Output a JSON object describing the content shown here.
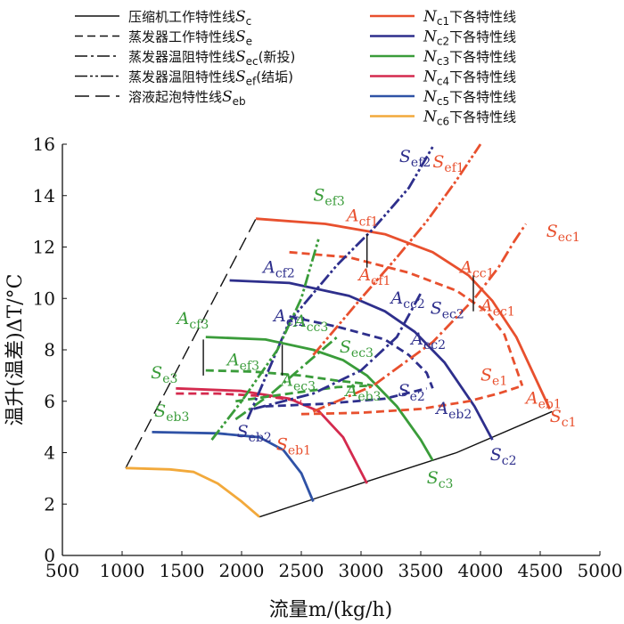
{
  "chart_data": {
    "type": "line",
    "xlabel": "流量m/(kg/h)",
    "ylabel": "温升(温差)ΔT/°C",
    "xlim": [
      500,
      5000
    ],
    "ylim": [
      0,
      16
    ],
    "x_ticks": [
      "500",
      "1000",
      "1500",
      "2000",
      "2500",
      "3000",
      "3500",
      "4000",
      "4500",
      "5000"
    ],
    "y_ticks": [
      "0",
      "2",
      "4",
      "6",
      "8",
      "10",
      "12",
      "14",
      "16"
    ],
    "grid": false,
    "legend_placement": "top",
    "colors": {
      "Nc1": "#e8502e",
      "Nc2": "#2e2f8c",
      "Nc3": "#3a9c3a",
      "Nc4": "#d42a4e",
      "Nc5": "#2f52a6",
      "Nc6": "#f2a93b",
      "black": "#111111"
    },
    "legend": [
      {
        "main": "压缩机工作特性线",
        "sym": "S",
        "sub": "c",
        "style": "solid",
        "color": "black"
      },
      {
        "main": "蒸发器工作特性线",
        "sym": "S",
        "sub": "e",
        "style": "dashed",
        "color": "black"
      },
      {
        "main": "蒸发器温阻特性线",
        "sym": "S",
        "sub": "ec",
        "extra": "(新投)",
        "style": "dashdot",
        "color": "black"
      },
      {
        "main": "蒸发器温阻特性线",
        "sym": "S",
        "sub": "ef",
        "extra": "(结垢)",
        "style": "dashdotdot",
        "color": "black"
      },
      {
        "main": "溶液起泡特性线",
        "sym": "S",
        "sub": "eb",
        "style": "longdash",
        "color": "black"
      },
      {
        "main": "下各特性线",
        "sym": "N",
        "sub": "c1",
        "style": "solid",
        "color": "Nc1"
      },
      {
        "main": "下各特性线",
        "sym": "N",
        "sub": "c2",
        "style": "solid",
        "color": "Nc2"
      },
      {
        "main": "下各特性线",
        "sym": "N",
        "sub": "c3",
        "style": "solid",
        "color": "Nc3"
      },
      {
        "main": "下各特性线",
        "sym": "N",
        "sub": "c4",
        "style": "solid",
        "color": "Nc4"
      },
      {
        "main": "下各特性线",
        "sym": "N",
        "sub": "c5",
        "style": "solid",
        "color": "Nc5"
      },
      {
        "main": "下各特性线",
        "sym": "N",
        "sub": "c6",
        "style": "solid",
        "color": "Nc6"
      }
    ],
    "series": [
      {
        "color": "black",
        "style": "solid",
        "x": [
          2150,
          3000,
          3800,
          4600
        ],
        "y": [
          1.5,
          2.8,
          4.0,
          5.6
        ]
      },
      {
        "color": "black",
        "style": "longdash",
        "x": [
          1030,
          2120
        ],
        "y": [
          3.4,
          13.1
        ]
      },
      {
        "color": "Nc1",
        "style": "solid",
        "x": [
          2120,
          2700,
          3200,
          3600,
          3900,
          4100,
          4300,
          4450,
          4580
        ],
        "y": [
          13.1,
          12.9,
          12.5,
          11.8,
          10.9,
          9.9,
          8.5,
          7.0,
          5.7
        ]
      },
      {
        "color": "Nc2",
        "style": "solid",
        "x": [
          1900,
          2400,
          2900,
          3200,
          3450,
          3700,
          3950,
          4100
        ],
        "y": [
          10.7,
          10.6,
          10.1,
          9.5,
          8.7,
          7.5,
          5.8,
          4.5
        ]
      },
      {
        "color": "Nc3",
        "style": "solid",
        "x": [
          1700,
          2200,
          2600,
          2850,
          3050,
          3300,
          3500,
          3600
        ],
        "y": [
          8.5,
          8.4,
          8.0,
          7.6,
          7.0,
          5.8,
          4.5,
          3.7
        ]
      },
      {
        "color": "Nc4",
        "style": "solid",
        "x": [
          1450,
          2000,
          2400,
          2650,
          2850,
          3050
        ],
        "y": [
          6.5,
          6.4,
          6.1,
          5.6,
          4.6,
          2.8
        ]
      },
      {
        "color": "Nc5",
        "style": "solid",
        "x": [
          1250,
          1800,
          2150,
          2350,
          2500,
          2600
        ],
        "y": [
          4.8,
          4.75,
          4.6,
          4.1,
          3.2,
          2.1
        ]
      },
      {
        "color": "Nc6",
        "style": "solid",
        "x": [
          1030,
          1400,
          1600,
          1800,
          2000,
          2150
        ],
        "y": [
          3.4,
          3.35,
          3.25,
          2.8,
          2.1,
          1.5
        ]
      },
      {
        "color": "Nc1",
        "style": "dashed",
        "x": [
          2400,
          2900,
          3400,
          3800,
          4050,
          4200,
          4350
        ],
        "y": [
          11.8,
          11.6,
          11.0,
          10.3,
          9.5,
          8.6,
          6.6
        ]
      },
      {
        "color": "Nc2",
        "style": "dashed",
        "x": [
          2400,
          2800,
          3200,
          3400,
          3550,
          3600
        ],
        "y": [
          9.3,
          8.9,
          8.4,
          7.8,
          7.1,
          6.5
        ]
      },
      {
        "color": "Nc3",
        "style": "dashed",
        "x": [
          1700,
          2100,
          2500,
          2800,
          3000,
          3100
        ],
        "y": [
          7.2,
          7.15,
          7.0,
          6.8,
          6.7,
          6.6
        ]
      },
      {
        "color": "Nc4",
        "style": "dashed",
        "x": [
          1450,
          1800,
          2200,
          2500
        ],
        "y": [
          6.3,
          6.3,
          6.2,
          6.0
        ]
      },
      {
        "color": "Nc1",
        "style": "dashed",
        "x": [
          2500,
          3000,
          3500,
          3900,
          4150,
          4350
        ],
        "y": [
          5.5,
          5.55,
          5.7,
          6.0,
          6.3,
          6.6
        ]
      },
      {
        "color": "Nc2",
        "style": "dashed",
        "x": [
          2200,
          2700,
          3200,
          3550
        ],
        "y": [
          5.8,
          5.9,
          6.1,
          6.5
        ]
      },
      {
        "color": "Nc3",
        "style": "dashed",
        "x": [
          1950,
          2400,
          2800,
          3050
        ],
        "y": [
          6.0,
          6.3,
          6.55,
          6.6
        ]
      },
      {
        "color": "Nc1",
        "style": "dashdot",
        "x": [
          2600,
          3100,
          3600,
          3950,
          4150,
          4280,
          4380
        ],
        "y": [
          5.6,
          6.6,
          8.3,
          10.0,
          11.2,
          12.2,
          12.9
        ]
      },
      {
        "color": "Nc2",
        "style": "dashdot",
        "x": [
          2100,
          2600,
          3000,
          3300,
          3500
        ],
        "y": [
          5.7,
          6.3,
          7.2,
          8.5,
          10.2
        ]
      },
      {
        "color": "Nc3",
        "style": "dashdot",
        "x": [
          1950,
          2250,
          2500,
          2700,
          2800
        ],
        "y": [
          5.3,
          6.3,
          7.3,
          8.1,
          8.5
        ]
      },
      {
        "color": "Nc1",
        "style": "dashdotdot",
        "x": [
          2600,
          3000,
          3300,
          3550,
          3800,
          4000
        ],
        "y": [
          7.8,
          10.0,
          11.6,
          13.0,
          14.6,
          16.0
        ]
      },
      {
        "color": "Nc2",
        "style": "dashdotdot",
        "x": [
          2050,
          2400,
          2800,
          3100,
          3400,
          3600
        ],
        "y": [
          5.3,
          9.1,
          11.3,
          12.7,
          14.3,
          15.9
        ]
      },
      {
        "color": "Nc3",
        "style": "dashdotdot",
        "x": [
          1750,
          2000,
          2300,
          2500,
          2650
        ],
        "y": [
          4.5,
          6.0,
          8.0,
          10.0,
          12.4
        ]
      },
      {
        "color": "black",
        "style": "solid",
        "x": [
          1680,
          1680
        ],
        "y": [
          7.0,
          8.4
        ]
      },
      {
        "color": "black",
        "style": "solid",
        "x": [
          2340,
          2340
        ],
        "y": [
          7.0,
          8.2
        ]
      },
      {
        "color": "black",
        "style": "solid",
        "x": [
          3050,
          3050
        ],
        "y": [
          11.2,
          12.5
        ]
      },
      {
        "color": "black",
        "style": "solid",
        "x": [
          3940,
          3940
        ],
        "y": [
          9.5,
          10.9
        ]
      }
    ],
    "annotations": [
      {
        "sym": "S",
        "sub": "ef2",
        "color": "Nc2",
        "x": 3320,
        "y": 15.3
      },
      {
        "sym": "S",
        "sub": "ef1",
        "color": "Nc1",
        "x": 3600,
        "y": 15.1
      },
      {
        "sym": "S",
        "sub": "ec1",
        "color": "Nc1",
        "x": 4550,
        "y": 12.4
      },
      {
        "sym": "S",
        "sub": "ef3",
        "color": "Nc3",
        "x": 2600,
        "y": 13.8
      },
      {
        "sym": "A",
        "sub": "cf1",
        "color": "Nc1",
        "x": 2880,
        "y": 13.0
      },
      {
        "sym": "A",
        "sub": "cf2",
        "color": "Nc2",
        "x": 2180,
        "y": 11.0
      },
      {
        "sym": "A",
        "sub": "ef1",
        "color": "Nc1",
        "x": 2980,
        "y": 10.7
      },
      {
        "sym": "A",
        "sub": "cc1",
        "color": "Nc1",
        "x": 3830,
        "y": 11.0
      },
      {
        "sym": "A",
        "sub": "ec1",
        "color": "Nc1",
        "x": 4000,
        "y": 9.5
      },
      {
        "sym": "A",
        "sub": "cc2",
        "color": "Nc2",
        "x": 3250,
        "y": 9.8
      },
      {
        "sym": "S",
        "sub": "ec2",
        "color": "Nc2",
        "x": 3580,
        "y": 9.4
      },
      {
        "sym": "A",
        "sub": "ef2",
        "color": "Nc2",
        "x": 2270,
        "y": 9.1
      },
      {
        "sym": "A",
        "sub": "cf3",
        "color": "Nc3",
        "x": 1460,
        "y": 9.0
      },
      {
        "sym": "A",
        "sub": "cc3",
        "color": "Nc3",
        "x": 2440,
        "y": 8.9
      },
      {
        "sym": "S",
        "sub": "ec3",
        "color": "Nc3",
        "x": 2820,
        "y": 7.9
      },
      {
        "sym": "A",
        "sub": "ec2",
        "color": "Nc2",
        "x": 3420,
        "y": 8.2
      },
      {
        "sym": "S",
        "sub": "e3",
        "color": "Nc3",
        "x": 1240,
        "y": 6.9
      },
      {
        "sym": "A",
        "sub": "ef3",
        "color": "Nc3",
        "x": 1880,
        "y": 7.4
      },
      {
        "sym": "S",
        "sub": "e1",
        "color": "Nc1",
        "x": 4000,
        "y": 6.8
      },
      {
        "sym": "A",
        "sub": "ec3",
        "color": "Nc3",
        "x": 2330,
        "y": 6.6
      },
      {
        "sym": "A",
        "sub": "eb3",
        "color": "Nc3",
        "x": 2870,
        "y": 6.2
      },
      {
        "sym": "S",
        "sub": "e2",
        "color": "Nc2",
        "x": 3310,
        "y": 6.2
      },
      {
        "sym": "A",
        "sub": "eb2",
        "color": "Nc2",
        "x": 3630,
        "y": 5.5
      },
      {
        "sym": "A",
        "sub": "eb1",
        "color": "Nc1",
        "x": 4380,
        "y": 5.9
      },
      {
        "sym": "S",
        "sub": "eb3",
        "color": "Nc3",
        "x": 1270,
        "y": 5.4
      },
      {
        "sym": "S",
        "sub": "c1",
        "color": "Nc1",
        "x": 4580,
        "y": 5.2
      },
      {
        "sym": "S",
        "sub": "eb2",
        "color": "Nc2",
        "x": 1960,
        "y": 4.6
      },
      {
        "sym": "S",
        "sub": "eb1",
        "color": "Nc1",
        "x": 2290,
        "y": 4.1
      },
      {
        "sym": "S",
        "sub": "c2",
        "color": "Nc2",
        "x": 4080,
        "y": 3.7
      },
      {
        "sym": "S",
        "sub": "c3",
        "color": "Nc3",
        "x": 3550,
        "y": 2.8
      }
    ]
  }
}
